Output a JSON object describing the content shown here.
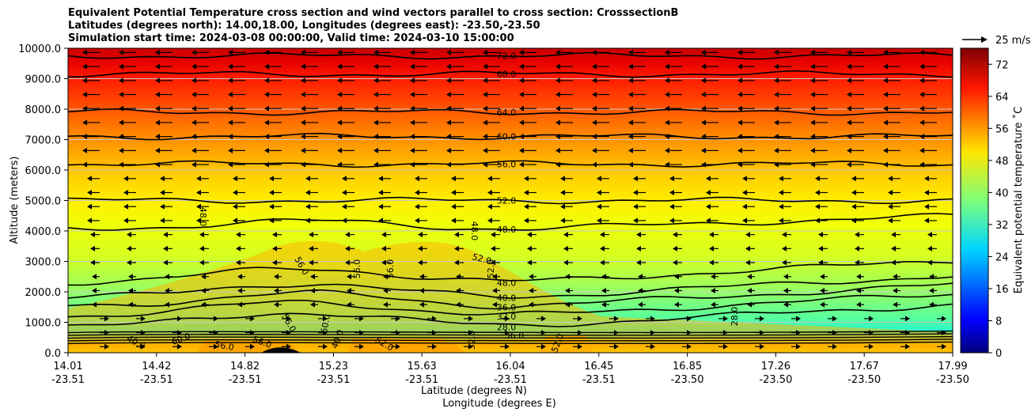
{
  "chart_data": {
    "type": "heatmap",
    "title_lines": [
      "Equivalent Potential Temperature cross section and wind vectors parallel to cross section: CrosssectionB",
      "Latitudes (degrees north): 14.00,18.00, Longitudes (degrees east): -23.50,-23.50",
      "Simulation start time: 2024-03-08 00:00:00, Valid time: 2024-03-10 15:00:00"
    ],
    "xlabel_lat": "Latitude (degrees N)",
    "xlabel_lon": "Longitude (degrees E)",
    "ylabel": "Altitude (meters)",
    "ylim": [
      0,
      10000
    ],
    "yticks": [
      "0.0",
      "1000.0",
      "2000.0",
      "3000.0",
      "4000.0",
      "5000.0",
      "6000.0",
      "7000.0",
      "8000.0",
      "9000.0",
      "10000.0"
    ],
    "xticks_lat": [
      "14.01",
      "14.42",
      "14.82",
      "15.23",
      "15.63",
      "16.04",
      "16.45",
      "16.85",
      "17.26",
      "17.67",
      "17.99"
    ],
    "xticks_lon": [
      "-23.51",
      "-23.51",
      "-23.51",
      "-23.51",
      "-23.51",
      "-23.51",
      "-23.51",
      "-23.50",
      "-23.50",
      "-23.50",
      "-23.50"
    ],
    "colorbar": {
      "label": "Equivalent potential temperature ˚C",
      "range": [
        0,
        76
      ],
      "ticks": [
        "0",
        "8",
        "16",
        "24",
        "32",
        "40",
        "48",
        "56",
        "64",
        "72"
      ]
    },
    "quiver_key": "25 m/s",
    "contours": [
      {
        "level": "72.0",
        "alt": 9750
      },
      {
        "level": "68.0",
        "alt": 9150
      },
      {
        "level": "64.0",
        "alt": 7900
      },
      {
        "level": "60.0",
        "alt": 7100
      },
      {
        "level": "56.0",
        "alt": 6200
      },
      {
        "level": "52.0",
        "alt": 5000
      },
      {
        "level": "48.0",
        "alt": 4050
      },
      {
        "level": "48.0",
        "alt": 2300
      },
      {
        "level": "40.0",
        "alt": 1800
      },
      {
        "level": "36.0",
        "alt": 1500
      },
      {
        "level": "32.0",
        "alt": 1200
      },
      {
        "level": "28.0",
        "alt": 850
      }
    ],
    "extra_contour_labels": [
      "48.0",
      "56.0",
      "56.0",
      "56.0",
      "52.0",
      "52.0",
      "48.0",
      "56.0",
      "60.0",
      "40.0",
      "60.0",
      "56.0",
      "56.0",
      "52.0",
      "40.0",
      "36.0",
      "32.0",
      "52.0",
      "28.0"
    ]
  }
}
